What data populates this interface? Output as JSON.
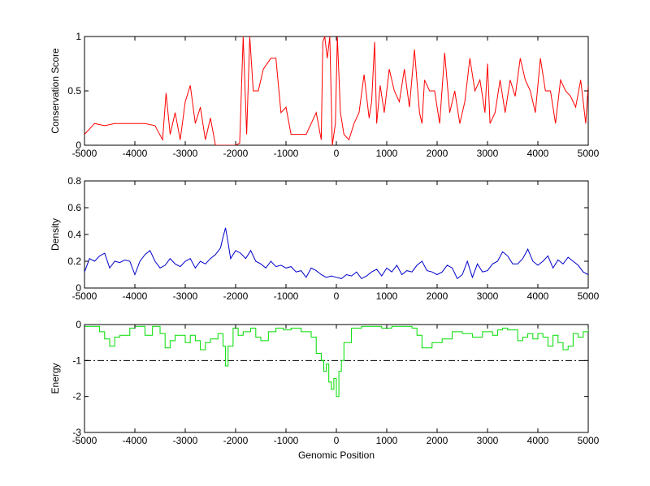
{
  "chart_data": [
    {
      "type": "line",
      "title": "",
      "xlabel": "",
      "ylabel": "Conservation Score",
      "xlim": [
        -5000,
        5000
      ],
      "ylim": [
        0,
        1
      ],
      "xticks": [
        -5000,
        -4000,
        -3000,
        -2000,
        -1000,
        0,
        1000,
        2000,
        3000,
        4000,
        5000
      ],
      "yticks": [
        0,
        0.5,
        1
      ],
      "ytick_labels": [
        "0",
        "0.5",
        "1"
      ],
      "grid": false,
      "series": [
        {
          "color": "#ff0000",
          "x": [
            -5000,
            -4800,
            -4600,
            -4400,
            -4200,
            -4000,
            -3800,
            -3600,
            -3450,
            -3380,
            -3300,
            -3200,
            -3100,
            -3000,
            -2900,
            -2800,
            -2700,
            -2600,
            -2500,
            -2400,
            -2300,
            -2200,
            -2100,
            -2000,
            -1920,
            -1850,
            -1780,
            -1720,
            -1650,
            -1550,
            -1450,
            -1300,
            -1200,
            -1100,
            -1000,
            -900,
            -800,
            -700,
            -600,
            -500,
            -400,
            -300,
            -270,
            -230,
            -180,
            -130,
            -80,
            -20,
            20,
            80,
            150,
            250,
            350,
            450,
            550,
            650,
            700,
            760,
            800,
            870,
            950,
            1050,
            1150,
            1250,
            1350,
            1450,
            1550,
            1650,
            1700,
            1750,
            1850,
            1950,
            2050,
            2150,
            2250,
            2350,
            2450,
            2550,
            2650,
            2750,
            2850,
            2950,
            3000,
            3050,
            3150,
            3250,
            3350,
            3450,
            3550,
            3650,
            3750,
            3850,
            3950,
            4050,
            4150,
            4250,
            4350,
            4450,
            4550,
            4650,
            4750,
            4850,
            4950,
            5000
          ],
          "y": [
            0.1,
            0.2,
            0.18,
            0.2,
            0.2,
            0.2,
            0.2,
            0.18,
            0.05,
            0.48,
            0.1,
            0.3,
            0.05,
            0.4,
            0.55,
            0.2,
            0.35,
            0.05,
            0.25,
            0.0,
            0.0,
            0.0,
            0.0,
            0.0,
            0.02,
            1.0,
            0.1,
            1.0,
            0.5,
            0.5,
            0.7,
            0.8,
            0.8,
            0.3,
            0.35,
            0.1,
            0.1,
            0.1,
            0.1,
            0.2,
            0.3,
            0.05,
            0.95,
            1.0,
            0.8,
            1.0,
            0.0,
            0.2,
            1.0,
            0.3,
            0.1,
            0.05,
            0.2,
            0.3,
            0.65,
            0.25,
            0.4,
            0.95,
            0.2,
            0.55,
            0.3,
            0.7,
            0.5,
            0.4,
            0.7,
            0.35,
            0.88,
            0.3,
            0.2,
            0.6,
            0.5,
            0.5,
            0.2,
            0.85,
            0.3,
            0.5,
            0.2,
            0.4,
            0.8,
            0.5,
            0.6,
            0.3,
            0.75,
            0.2,
            0.3,
            0.6,
            0.3,
            0.6,
            0.45,
            0.8,
            0.6,
            0.5,
            0.3,
            0.8,
            0.5,
            0.5,
            0.2,
            0.6,
            0.5,
            0.45,
            0.35,
            0.6,
            0.2,
            0.55
          ]
        }
      ]
    },
    {
      "type": "line",
      "title": "",
      "xlabel": "",
      "ylabel": "Density",
      "xlim": [
        -5000,
        5000
      ],
      "ylim": [
        0,
        0.8
      ],
      "xticks": [
        -5000,
        -4000,
        -3000,
        -2000,
        -1000,
        0,
        1000,
        2000,
        3000,
        4000,
        5000
      ],
      "yticks": [
        0,
        0.2,
        0.4,
        0.6,
        0.8
      ],
      "ytick_labels": [
        "0",
        "0.2",
        "0.4",
        "0.6",
        "0.8"
      ],
      "grid": false,
      "series": [
        {
          "color": "#0000cc",
          "x": [
            -5000,
            -4900,
            -4800,
            -4700,
            -4600,
            -4500,
            -4400,
            -4300,
            -4200,
            -4100,
            -4000,
            -3900,
            -3800,
            -3700,
            -3600,
            -3500,
            -3400,
            -3300,
            -3200,
            -3100,
            -3000,
            -2900,
            -2800,
            -2700,
            -2600,
            -2500,
            -2400,
            -2300,
            -2250,
            -2200,
            -2150,
            -2100,
            -2000,
            -1900,
            -1800,
            -1700,
            -1600,
            -1500,
            -1400,
            -1300,
            -1200,
            -1100,
            -1000,
            -900,
            -800,
            -700,
            -600,
            -500,
            -400,
            -300,
            -200,
            -100,
            0,
            100,
            200,
            300,
            400,
            500,
            600,
            700,
            800,
            900,
            1000,
            1100,
            1200,
            1300,
            1400,
            1500,
            1600,
            1700,
            1800,
            1900,
            2000,
            2100,
            2200,
            2300,
            2400,
            2500,
            2600,
            2700,
            2800,
            2900,
            3000,
            3100,
            3200,
            3300,
            3400,
            3500,
            3600,
            3700,
            3800,
            3900,
            4000,
            4100,
            4200,
            4300,
            4400,
            4500,
            4600,
            4700,
            4800,
            4900,
            5000
          ],
          "y": [
            0.12,
            0.22,
            0.2,
            0.24,
            0.26,
            0.15,
            0.2,
            0.19,
            0.21,
            0.2,
            0.1,
            0.2,
            0.25,
            0.28,
            0.2,
            0.15,
            0.17,
            0.22,
            0.18,
            0.16,
            0.2,
            0.22,
            0.15,
            0.2,
            0.18,
            0.22,
            0.25,
            0.3,
            0.38,
            0.45,
            0.34,
            0.22,
            0.28,
            0.26,
            0.22,
            0.28,
            0.2,
            0.18,
            0.15,
            0.2,
            0.16,
            0.17,
            0.15,
            0.16,
            0.12,
            0.13,
            0.08,
            0.15,
            0.13,
            0.1,
            0.08,
            0.09,
            0.08,
            0.07,
            0.1,
            0.09,
            0.12,
            0.07,
            0.09,
            0.12,
            0.14,
            0.09,
            0.15,
            0.12,
            0.17,
            0.1,
            0.13,
            0.12,
            0.17,
            0.2,
            0.13,
            0.12,
            0.1,
            0.12,
            0.17,
            0.15,
            0.07,
            0.1,
            0.2,
            0.08,
            0.18,
            0.12,
            0.13,
            0.18,
            0.2,
            0.27,
            0.24,
            0.18,
            0.18,
            0.22,
            0.29,
            0.2,
            0.17,
            0.2,
            0.24,
            0.15,
            0.21,
            0.18,
            0.23,
            0.2,
            0.17,
            0.12,
            0.1
          ]
        }
      ]
    },
    {
      "type": "line",
      "title": "",
      "xlabel": "Genomic Position",
      "ylabel": "Energy",
      "xlim": [
        -5000,
        5000
      ],
      "ylim": [
        -3,
        0
      ],
      "xticks": [
        -5000,
        -4000,
        -3000,
        -2000,
        -1000,
        0,
        1000,
        2000,
        3000,
        4000,
        5000
      ],
      "yticks": [
        -3,
        -2,
        -1,
        0
      ],
      "ytick_labels": [
        "-3",
        "-2",
        "-1",
        "0"
      ],
      "grid": false,
      "reference_line": {
        "y": -1,
        "style": "dash-dot",
        "color": "#000000"
      },
      "series": [
        {
          "color": "#00dd00",
          "step": true,
          "x": [
            -5000,
            -4700,
            -4600,
            -4500,
            -4400,
            -4300,
            -4100,
            -4000,
            -3800,
            -3650,
            -3500,
            -3400,
            -3300,
            -3200,
            -3000,
            -2900,
            -2800,
            -2700,
            -2600,
            -2500,
            -2350,
            -2250,
            -2200,
            -2150,
            -2050,
            -1950,
            -1850,
            -1700,
            -1600,
            -1500,
            -1350,
            -1200,
            -1050,
            -900,
            -700,
            -500,
            -400,
            -300,
            -250,
            -200,
            -150,
            -100,
            -50,
            0,
            50,
            100,
            150,
            300,
            500,
            700,
            900,
            1100,
            1300,
            1500,
            1600,
            1700,
            1900,
            2100,
            2300,
            2500,
            2700,
            2900,
            3100,
            3200,
            3300,
            3400,
            3600,
            3700,
            3800,
            3900,
            4000,
            4100,
            4200,
            4300,
            4400,
            4500,
            4600,
            4700,
            4800,
            4900,
            5000
          ],
          "y": [
            -0.05,
            -0.2,
            -0.4,
            -0.6,
            -0.35,
            -0.3,
            -0.1,
            -0.05,
            -0.3,
            -0.05,
            -0.25,
            -0.65,
            -0.45,
            -0.3,
            -0.5,
            -0.3,
            -0.45,
            -0.7,
            -0.5,
            -0.4,
            -0.25,
            -0.6,
            -1.15,
            -0.6,
            -0.1,
            -0.3,
            -0.2,
            -0.1,
            -0.35,
            -0.45,
            -0.2,
            -0.1,
            -0.15,
            -0.1,
            -0.2,
            -0.35,
            -0.8,
            -1.0,
            -1.3,
            -1.1,
            -1.6,
            -1.8,
            -1.5,
            -2.0,
            -1.3,
            -1.0,
            -0.5,
            -0.1,
            -0.05,
            -0.05,
            -0.1,
            -0.05,
            -0.05,
            -0.1,
            -0.3,
            -0.65,
            -0.5,
            -0.4,
            -0.2,
            -0.25,
            -0.35,
            -0.2,
            -0.3,
            -0.15,
            -0.1,
            -0.15,
            -0.45,
            -0.35,
            -0.25,
            -0.4,
            -0.25,
            -0.35,
            -0.6,
            -0.3,
            -0.5,
            -0.7,
            -0.6,
            -0.25,
            -0.35,
            -0.2,
            -0.05
          ]
        }
      ]
    }
  ]
}
